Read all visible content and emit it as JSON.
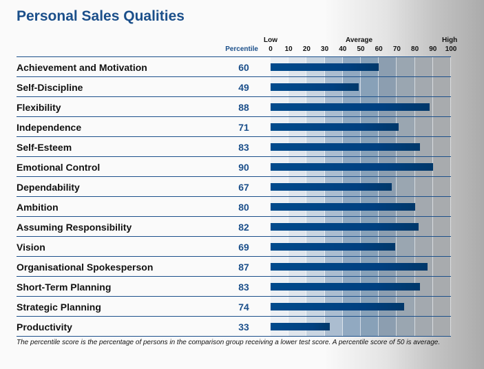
{
  "title": "Personal Sales Qualities",
  "chart_data": {
    "type": "bar",
    "orientation": "horizontal",
    "title": "Personal Sales Qualities",
    "value_column_header": "Percentile",
    "scale_labels": {
      "low": "Low",
      "average": "Average",
      "high": "High"
    },
    "xlim": [
      0,
      100
    ],
    "ticks": [
      "0",
      "10",
      "20",
      "30",
      "40",
      "50",
      "60",
      "70",
      "80",
      "90",
      "100"
    ],
    "categories": [
      "Achievement and Motivation",
      "Self-Discipline",
      "Flexibility",
      "Independence",
      "Self-Esteem",
      "Emotional Control",
      "Dependability",
      "Ambition",
      "Assuming Responsibility",
      "Vision",
      "Organisational Spokesperson",
      "Short-Term Planning",
      "Strategic Planning",
      "Productivity"
    ],
    "values": [
      60,
      49,
      88,
      71,
      83,
      90,
      67,
      80,
      82,
      69,
      87,
      83,
      74,
      33
    ],
    "bar_color": "#004a8c",
    "band_colors": [
      "#edf0f4",
      "#dfe5ec",
      "#c9d5e1",
      "#abbdd0",
      "#91a9c1",
      "#88a1b8",
      "#8c9eb0",
      "#9aa6b1",
      "#a3a9af",
      "#a8abae"
    ]
  },
  "note": "The percentile score is the percentage of persons in the comparison group receiving a lower test score. A percentile score of 50 is average."
}
